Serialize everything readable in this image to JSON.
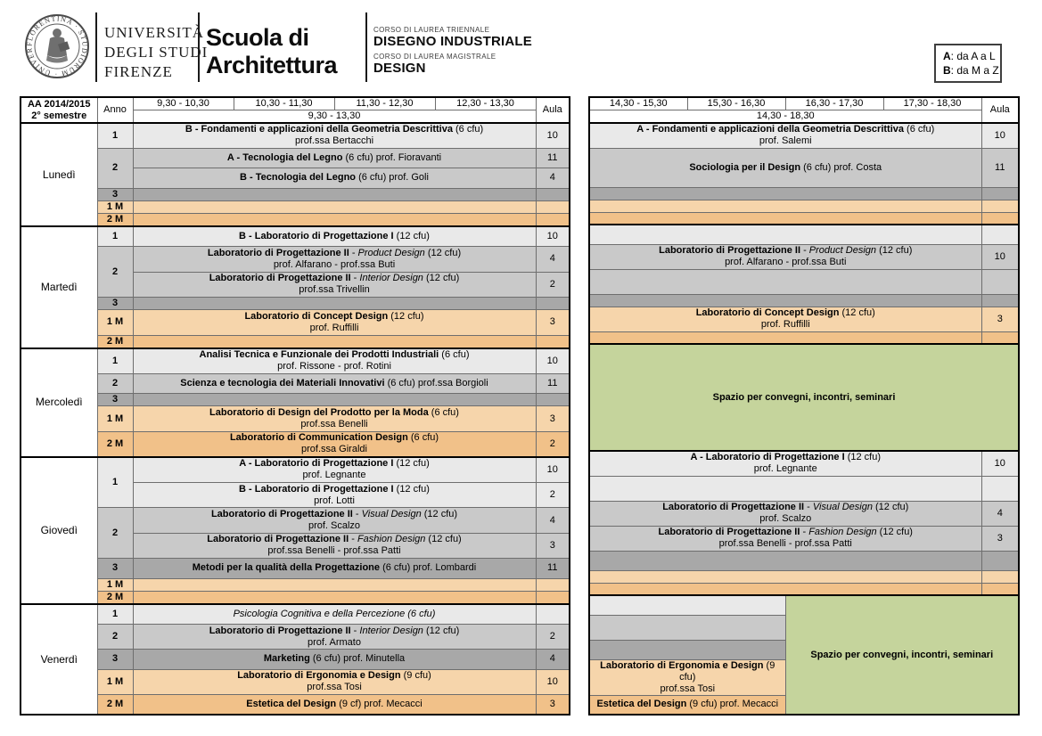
{
  "brand": {
    "seal_ring_text": "FLORENTINA · STUDIORUM · UNIVERSITAS ·",
    "university_html": "UNIVERSITÀ<br>DEGLI STUDI<br>FIRENZE",
    "school_html": "Scuola di<br>Architettura",
    "degree1_label": "CORSO DI LAUREA TRIENNALE",
    "degree1_name": "DISEGNO INDUSTRIALE",
    "degree2_label": "CORSO DI LAUREA MAGISTRALE",
    "degree2_name": "DESIGN",
    "legend_line1_html": "<b>A</b>: da A a L",
    "legend_line2_html": "<b>B</b>: da M a Z"
  },
  "meta": {
    "aa_html": "AA 2014/2015<br>2° semestre",
    "anno": "Anno",
    "aula": "Aula",
    "morning_slots": [
      "9,30 - 10,30",
      "10,30 - 11,30",
      "11,30 - 12,30",
      "12,30 - 13,30"
    ],
    "morning_merged": "9,30 - 13,30",
    "afternoon_slots": [
      "14,30 - 15,30",
      "15,30 - 16,30",
      "16,30 - 17,30",
      "17,30 - 18,30"
    ],
    "afternoon_merged": "14,30 - 18,30",
    "days": [
      "Lunedì",
      "Martedì",
      "Mercoledì",
      "Giovedì",
      "Venerdì"
    ],
    "years": [
      "1",
      "2",
      "3",
      "1 M",
      "2 M"
    ]
  },
  "spazio": "Spazio per convegni, incontri, seminari",
  "cells": {
    "lun_m1": {
      "html": "<b>B - Fondamenti e applicazioni della Geometria Descrittiva</b> (6 cfu)<br>prof.ssa Bertacchi",
      "aula": "10"
    },
    "lun_m2a": {
      "html": "<b>A - Tecnologia del Legno</b> (6 cfu) prof. Fioravanti",
      "aula": "11"
    },
    "lun_m2b": {
      "html": "<b>B - Tecnologia del Legno</b> (6 cfu) prof. Goli",
      "aula": "4"
    },
    "mar_m1": {
      "html": "<b>B - Laboratorio di Progettazione I</b> (12 cfu)",
      "aula": "10"
    },
    "mar_m2a": {
      "html": "<b>Laboratorio di Progettazione II</b> - <i>Product Design</i> (12 cfu)<br>prof. Alfarano - prof.ssa Buti",
      "aula": "4"
    },
    "mar_m2b": {
      "html": "<b>Laboratorio di Progettazione II</b> - <i>Interior Design</i> (12 cfu)<br>prof.ssa Trivellin",
      "aula": "2"
    },
    "mar_m1M": {
      "html": "<b>Laboratorio di Concept Design</b> (12 cfu)<br>prof. Ruffilli",
      "aula": "3"
    },
    "mer_m1": {
      "html": "<b>Analisi Tecnica e Funzionale dei Prodotti Industriali</b> (6 cfu)<br>prof. Rissone - prof. Rotini",
      "aula": "10"
    },
    "mer_m2": {
      "html": "<b>Scienza e tecnologia dei Materiali Innovativi</b> (6 cfu) prof.ssa Borgioli",
      "aula": "11"
    },
    "mer_m1M": {
      "html": "<b>Laboratorio di Design del Prodotto per la Moda</b> (6 cfu)<br>prof.ssa Benelli",
      "aula": "3"
    },
    "mer_m2M": {
      "html": "<b>Laboratorio di Communication Design</b> (6 cfu)<br>prof.ssa Giraldi",
      "aula": "2"
    },
    "gio_m1a": {
      "html": "<b>A - Laboratorio di Progettazione I</b> (12 cfu)<br>prof. Legnante",
      "aula": "10"
    },
    "gio_m1b": {
      "html": "<b>B - Laboratorio di Progettazione I</b> (12 cfu)<br>prof. Lotti",
      "aula": "2"
    },
    "gio_m2a": {
      "html": "<b>Laboratorio di Progettazione II</b> - <i>Visual Design</i> (12 cfu)<br>prof. Scalzo",
      "aula": "4"
    },
    "gio_m2b": {
      "html": "<b>Laboratorio di Progettazione II</b> - <i>Fashion Design</i> (12 cfu)<br>prof.ssa Benelli - prof.ssa Patti",
      "aula": "3"
    },
    "gio_m3": {
      "html": "<b>Metodi per la qualità della Progettazione</b> (6 cfu) prof. Lombardi",
      "aula": "11"
    },
    "ven_m1": {
      "html": "<i>Psicologia Cognitiva e della Percezione (6 cfu)</i>",
      "aula": ""
    },
    "ven_m2": {
      "html": "<b>Laboratorio di Progettazione II</b> - <i>Interior Design</i> (12 cfu)<br>prof. Armato",
      "aula": "2"
    },
    "ven_m3": {
      "html": "<b>Marketing</b> (6 cfu) prof. Minutella",
      "aula": "4"
    },
    "ven_m1M": {
      "html": "<b>Laboratorio di Ergonomia e Design</b> (9 cfu)<br>prof.ssa Tosi",
      "aula": "10"
    },
    "ven_m2M": {
      "html": "<b>Estetica del Design</b> (9 cf) prof. Mecacci",
      "aula": "3"
    },
    "lun_a1": {
      "html": "<b>A - Fondamenti e applicazioni della Geometria Descrittiva</b> (6 cfu)<br>prof. Salemi",
      "aula": "10"
    },
    "lun_a2": {
      "html": "<b>Sociologia per il Design</b> (6 cfu) prof. Costa",
      "aula": "11"
    },
    "mar_a2a": {
      "html": "<b>Laboratorio di Progettazione II</b> - <i>Product Design</i> (12 cfu)<br>prof. Alfarano - prof.ssa Buti",
      "aula": "10"
    },
    "mar_a1M": {
      "html": "<b>Laboratorio di Concept Design</b> (12 cfu)<br>prof. Ruffilli",
      "aula": "3"
    },
    "gio_a1a": {
      "html": "<b>A - Laboratorio di Progettazione I</b> (12 cfu)<br>prof. Legnante",
      "aula": "10"
    },
    "gio_a2a": {
      "html": "<b>Laboratorio di Progettazione II</b> - <i>Visual Design</i> (12 cfu)<br>prof. Scalzo",
      "aula": "4"
    },
    "gio_a2b": {
      "html": "<b>Laboratorio di Progettazione II</b> - <i>Fashion Design</i> (12 cfu)<br>prof.ssa Benelli - prof.ssa Patti",
      "aula": "3"
    },
    "ven_a1M": {
      "html": "<b>Laboratorio di Ergonomia e Design</b> (9 cfu)<br>prof.ssa Tosi",
      "aula": ""
    },
    "ven_a2M": {
      "html": "<b>Estetica del Design</b> (9 cfu) prof. Mecacci",
      "aula": ""
    }
  }
}
